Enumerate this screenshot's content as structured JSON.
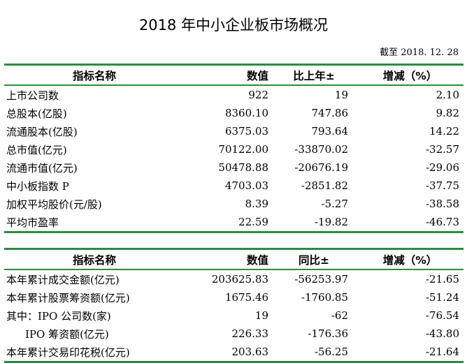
{
  "title": "2018 年中小企业板市场概况",
  "date_note": "截至 2018. 12. 28",
  "accent_color": "#2e8b3e",
  "table1": {
    "headers": [
      "指标名称",
      "数值",
      "比上年±",
      "增减（%）"
    ],
    "rows": [
      [
        "上市公司数",
        "922",
        "19",
        "2.10"
      ],
      [
        "总股本(亿股)",
        "8360.10",
        "747.86",
        "9.82"
      ],
      [
        "流通股本(亿股)",
        "6375.03",
        "793.64",
        "14.22"
      ],
      [
        "总市值(亿元)",
        "70122.00",
        "-33870.02",
        "-32.57"
      ],
      [
        "流通市值(亿元)",
        "50478.88",
        "-20676.19",
        "-29.06"
      ],
      [
        "中小板指数 P",
        "4703.03",
        "-2851.82",
        "-37.75"
      ],
      [
        "加权平均股价(元/股)",
        "8.39",
        "-5.27",
        "-38.58"
      ],
      [
        "平均市盈率",
        "22.59",
        "-19.82",
        "-46.73"
      ]
    ]
  },
  "table2": {
    "headers": [
      "指标名称",
      "数值",
      "同比±",
      "增减（%）"
    ],
    "rows": [
      [
        "本年累计成交金额(亿元)",
        "203625.83",
        "-56253.97",
        "-21.65"
      ],
      [
        "本年累计股票筹资额(亿元)",
        "1675.46",
        "-1760.85",
        "-51.24"
      ],
      [
        "其中：IPO 公司数(家)",
        "19",
        "-62",
        "-76.54"
      ],
      [
        "IPO 筹资额(亿元)",
        "226.33",
        "-176.36",
        "-43.80"
      ],
      [
        "本年累计交易印花税(亿元)",
        "203.63",
        "-56.25",
        "-21.64"
      ]
    ]
  }
}
